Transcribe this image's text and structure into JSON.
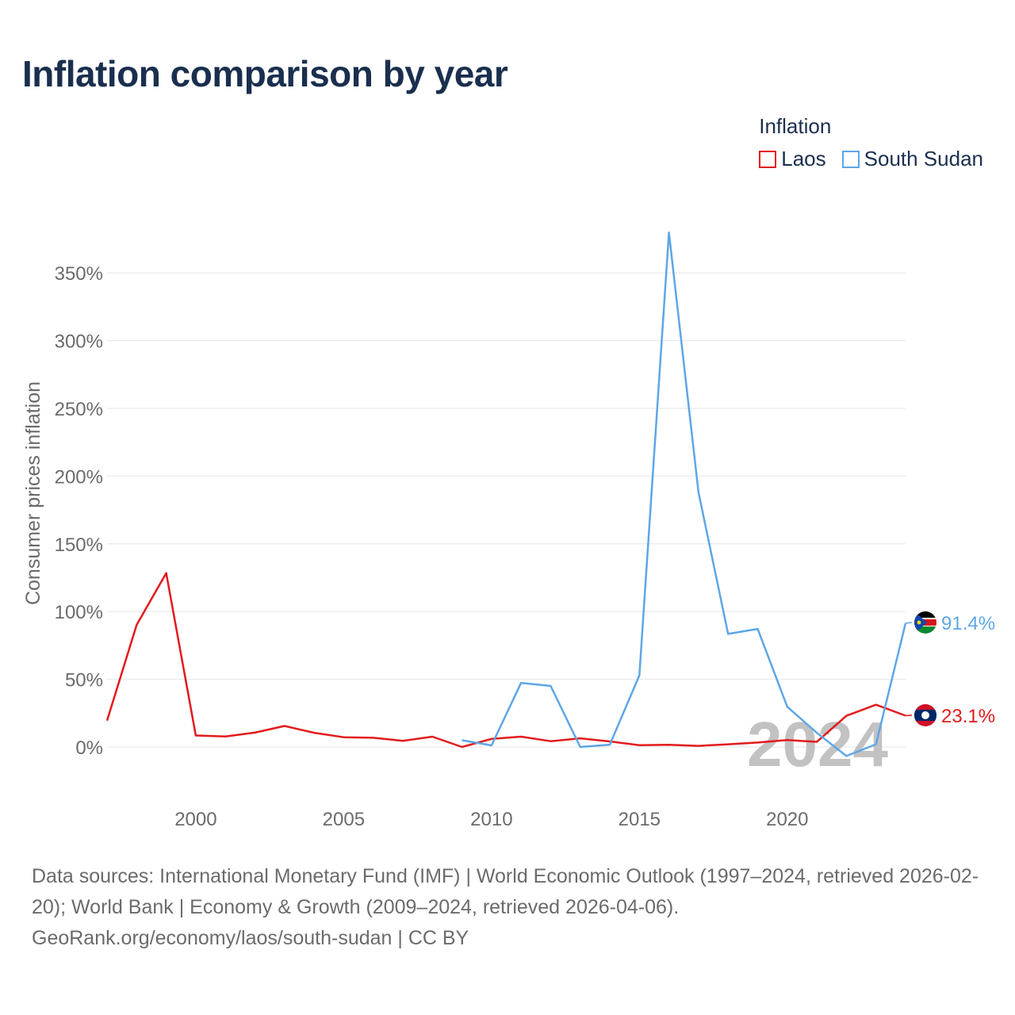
{
  "title": "Inflation comparison by year",
  "legend": {
    "title": "Inflation",
    "items": [
      {
        "label": "Laos",
        "color": "#e31a1c"
      },
      {
        "label": "South Sudan",
        "color": "#5ea6e6"
      }
    ]
  },
  "chart_data": {
    "type": "line",
    "title": "Inflation comparison by year",
    "xlabel": "",
    "ylabel": "Consumer prices inflation",
    "xlim": [
      1997,
      2024
    ],
    "ylim": [
      -25,
      390
    ],
    "x_ticks": [
      2000,
      2005,
      2010,
      2015,
      2020
    ],
    "y_ticks": [
      0,
      50,
      100,
      150,
      200,
      250,
      300,
      350
    ],
    "y_tick_labels": [
      "0%",
      "50%",
      "100%",
      "150%",
      "200%",
      "250%",
      "300%",
      "350%"
    ],
    "grid": true,
    "year_watermark": "2024",
    "series": [
      {
        "name": "Laos",
        "color": "#e31a1c",
        "x": [
          1997,
          1998,
          1999,
          2000,
          2001,
          2002,
          2003,
          2004,
          2005,
          2006,
          2007,
          2008,
          2009,
          2010,
          2011,
          2012,
          2013,
          2014,
          2015,
          2016,
          2017,
          2018,
          2019,
          2020,
          2021,
          2022,
          2023,
          2024
        ],
        "values": [
          19.5,
          90.1,
          128.4,
          8.5,
          7.8,
          10.6,
          15.5,
          10.5,
          7.2,
          6.8,
          4.5,
          7.6,
          0.0,
          6.0,
          7.6,
          4.3,
          6.4,
          4.1,
          1.3,
          1.6,
          0.8,
          2.0,
          3.3,
          5.1,
          3.8,
          23.0,
          31.2,
          23.1
        ],
        "end_label": "23.1%"
      },
      {
        "name": "South Sudan",
        "color": "#5ea6e6",
        "x": [
          2009,
          2010,
          2011,
          2012,
          2013,
          2014,
          2015,
          2016,
          2017,
          2018,
          2019,
          2020,
          2021,
          2022,
          2023,
          2024
        ],
        "values": [
          5.0,
          1.2,
          47.3,
          45.1,
          0.0,
          1.7,
          52.8,
          379.8,
          187.9,
          83.5,
          87.2,
          29.7,
          10.4,
          -6.7,
          2.0,
          91.4
        ],
        "end_label": "91.4%"
      }
    ]
  },
  "sources": {
    "line1": "Data sources: International Monetary Fund (IMF) | World Economic Outlook (1997–2024, retrieved 2026-02-20); World Bank | Economy & Growth (2009–2024, retrieved 2026-04-06).",
    "line2": "GeoRank.org/economy/laos/south-sudan | CC BY"
  }
}
